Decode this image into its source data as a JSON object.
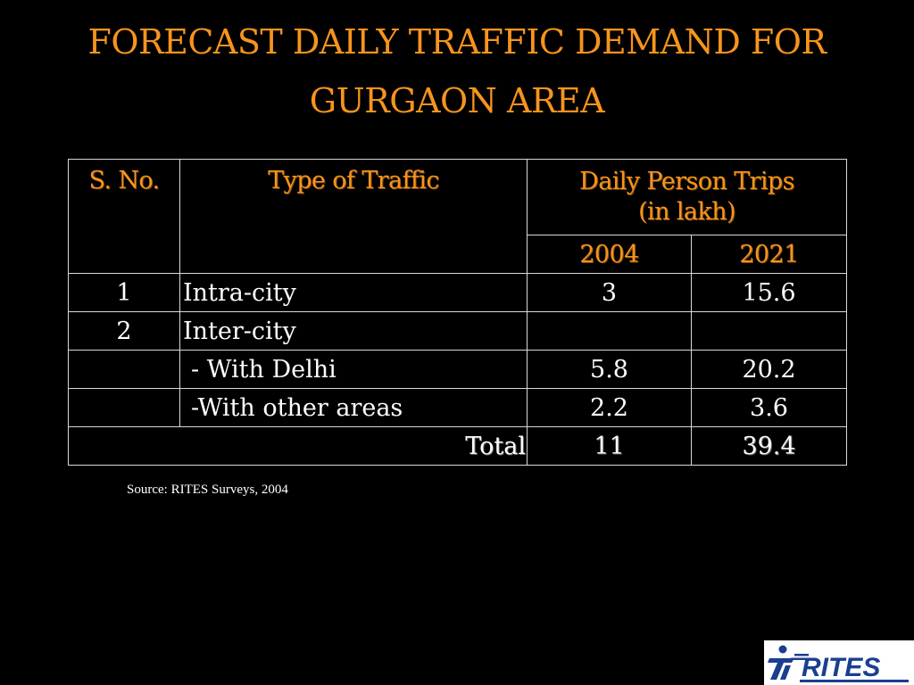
{
  "title": {
    "line1": "FORECAST DAILY TRAFFIC DEMAND FOR",
    "line2": "GURGAON AREA"
  },
  "table": {
    "headers": {
      "sno": "S. No.",
      "type": "Type of  Traffic",
      "trips_line1": "Daily Person Trips",
      "trips_line2": "(in lakh)",
      "year1": "2004",
      "year2": "2021"
    },
    "rows": [
      {
        "sno": "1",
        "type": "Intra-city",
        "v2004": "3",
        "v2021": "15.6"
      },
      {
        "sno": "2",
        "type": "Inter-city",
        "v2004": "",
        "v2021": ""
      },
      {
        "sno": "",
        "type": "- With Delhi",
        "v2004": "5.8",
        "v2021": "20.2"
      },
      {
        "sno": "",
        "type": "-With other areas",
        "v2004": "2.2",
        "v2021": "3.6"
      }
    ],
    "total": {
      "label": "Total",
      "v2004": "11",
      "v2021": "39.4"
    }
  },
  "source": "Source: RITES Surveys, 2004",
  "logo": {
    "name": "RITES",
    "color": "#1b3f8f"
  },
  "colors": {
    "accent": "#F7941D",
    "background": "#000000",
    "text": "#ffffff"
  }
}
